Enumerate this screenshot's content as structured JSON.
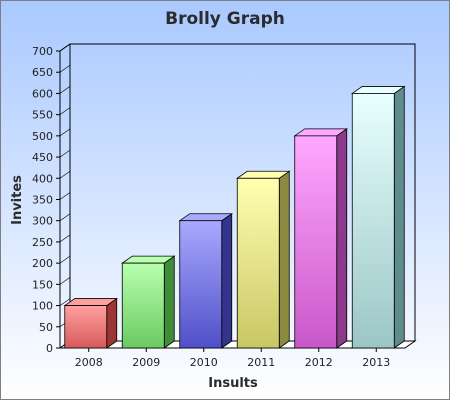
{
  "chart_data": {
    "type": "bar",
    "title": "Brolly Graph",
    "xlabel": "Insults",
    "ylabel": "Invites",
    "categories": [
      "2008",
      "2009",
      "2010",
      "2011",
      "2012",
      "2013"
    ],
    "values": [
      100,
      200,
      300,
      400,
      500,
      600
    ],
    "ylim": [
      0,
      700
    ],
    "yticks": [
      "0",
      "50",
      "100",
      "150",
      "200",
      "250",
      "300",
      "350",
      "400",
      "450",
      "500",
      "550",
      "600",
      "650",
      "700"
    ],
    "grid": false,
    "legend": "none",
    "colors": {
      "background_top": "#a9c9ff",
      "background_bottom": "#ffffff",
      "frame": "#7f7f7f",
      "bars": [
        {
          "light": "#ffa0a0",
          "dark": "#d65a5a",
          "side": "#9c3636"
        },
        {
          "light": "#b8ffb0",
          "dark": "#6cca62",
          "side": "#3f8c39"
        },
        {
          "light": "#a9a9ff",
          "dark": "#4f4fc8",
          "side": "#34348c"
        },
        {
          "light": "#ffffb0",
          "dark": "#c9c665",
          "side": "#8c8a3f"
        },
        {
          "light": "#ffa8ff",
          "dark": "#c957c9",
          "side": "#8c3a8c"
        },
        {
          "light": "#e8ffff",
          "dark": "#9cc6c6",
          "side": "#5f8c8c"
        }
      ]
    }
  }
}
